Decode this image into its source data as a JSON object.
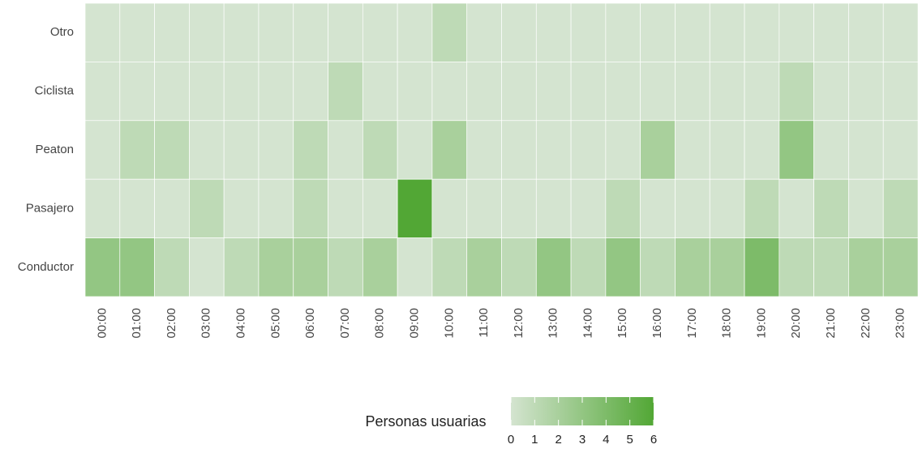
{
  "chart_data": {
    "type": "heatmap",
    "x": [
      "00:00",
      "01:00",
      "02:00",
      "03:00",
      "04:00",
      "05:00",
      "06:00",
      "07:00",
      "08:00",
      "09:00",
      "10:00",
      "11:00",
      "12:00",
      "13:00",
      "14:00",
      "15:00",
      "16:00",
      "17:00",
      "18:00",
      "19:00",
      "20:00",
      "21:00",
      "22:00",
      "23:00"
    ],
    "y": [
      "Otro",
      "Ciclista",
      "Peaton",
      "Pasajero",
      "Conductor"
    ],
    "values": [
      [
        0,
        0,
        0,
        0,
        0,
        0,
        0,
        0,
        0,
        0,
        1,
        0,
        0,
        0,
        0,
        0,
        0,
        0,
        0,
        0,
        0,
        0,
        0,
        0
      ],
      [
        0,
        0,
        0,
        0,
        0,
        0,
        0,
        1,
        0,
        0,
        0,
        0,
        0,
        0,
        0,
        0,
        0,
        0,
        0,
        0,
        1,
        0,
        0,
        0
      ],
      [
        0,
        1,
        1,
        0,
        0,
        0,
        1,
        0,
        1,
        0,
        2,
        0,
        0,
        0,
        0,
        0,
        2,
        0,
        0,
        0,
        3,
        0,
        0,
        0
      ],
      [
        0,
        0,
        0,
        1,
        0,
        0,
        1,
        0,
        0,
        6,
        0,
        0,
        0,
        0,
        0,
        1,
        0,
        0,
        0,
        1,
        0,
        1,
        0,
        1
      ],
      [
        3,
        3,
        1,
        0,
        1,
        2,
        2,
        1,
        2,
        0,
        1,
        2,
        1,
        3,
        1,
        3,
        1,
        2,
        2,
        4,
        1,
        1,
        2,
        2
      ]
    ],
    "colorbar": {
      "title": "Personas usuarias",
      "lim": [
        0,
        6
      ],
      "ticks": [
        0,
        1,
        2,
        3,
        4,
        5,
        6
      ],
      "low_color": "#d4e4d0",
      "high_color": "#52a735"
    }
  }
}
